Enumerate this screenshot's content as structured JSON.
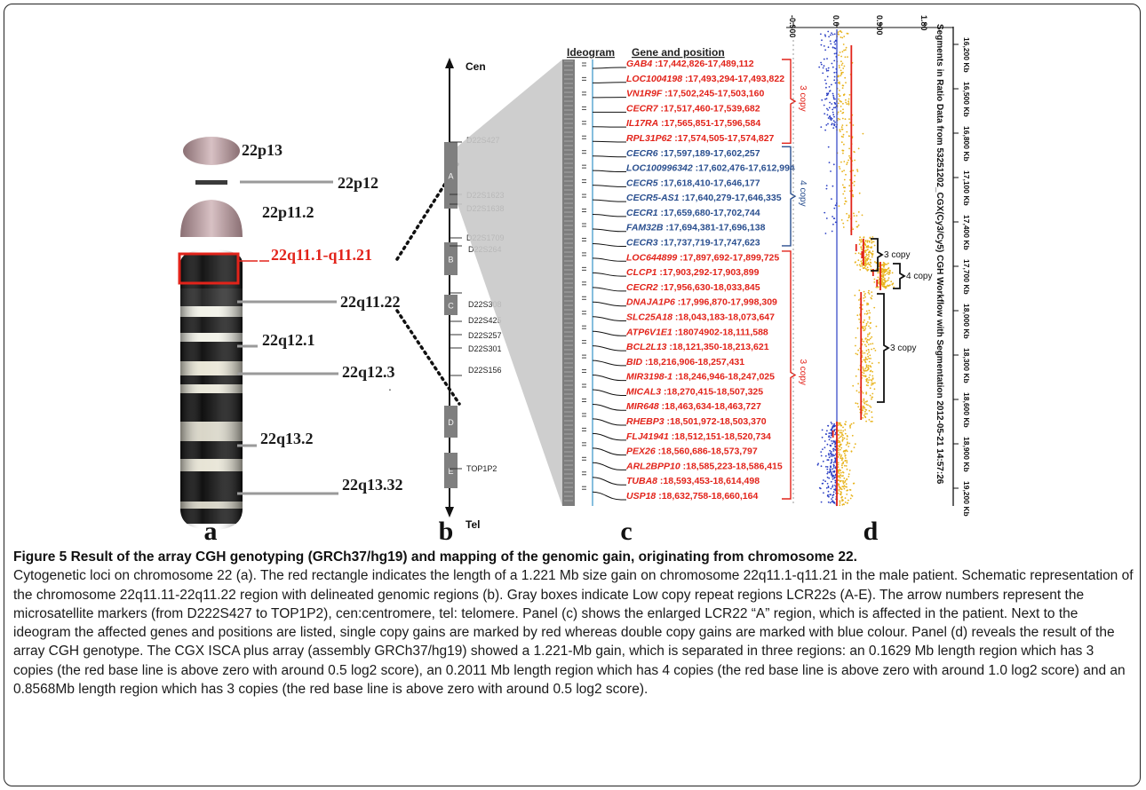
{
  "panel_letters": [
    "a",
    "b",
    "c",
    "d"
  ],
  "panel_a": {
    "bands": [
      "22p13",
      "22p12",
      "22p11.2",
      "22q11.1-q11.21",
      "22q11.22",
      "22q12.1",
      "22q12.3",
      "22q13.2",
      "22q13.32"
    ]
  },
  "panel_b": {
    "cen": "Cen",
    "tel": "Tel",
    "markers": [
      "D22S427",
      "D22S1638",
      "D22S1623",
      "D22S264",
      "D22S1709",
      "D22S308",
      "D22S425",
      "D22S257",
      "D22S301",
      "D22S156",
      "TOP1P2"
    ],
    "lcr_boxes": [
      "A",
      "B",
      "C",
      "D",
      "E"
    ]
  },
  "panel_c": {
    "ideogram_header": "Ideogram",
    "genes_header": "Gene and position",
    "genes": [
      {
        "name": "GAB4",
        "pos": ":17,442,826-17,489,112",
        "color": "#e2231a"
      },
      {
        "name": "LOC1004198",
        "pos": ":17,493,294-17,493,822",
        "color": "#e2231a"
      },
      {
        "name": "VN1R9F",
        "pos": ":17,502,245-17,503,160",
        "color": "#e2231a"
      },
      {
        "name": "CECR7",
        "pos": ":17,517,460-17,539,682",
        "color": "#e2231a"
      },
      {
        "name": "IL17RA",
        "pos": ":17,565,851-17,596,584",
        "color": "#e2231a"
      },
      {
        "name": "RPL31P62",
        "pos": ":17,574,505-17,574,827",
        "color": "#e2231a"
      },
      {
        "name": "CECR6",
        "pos": ":17,597,189-17,602,257",
        "color": "#2a4f8f"
      },
      {
        "name": "LOC100996342",
        "pos": ":17,602,476-17,612,994",
        "color": "#2a4f8f"
      },
      {
        "name": "CECR5",
        "pos": ":17,618,410-17,646,177",
        "color": "#2a4f8f"
      },
      {
        "name": "CECR5-AS1",
        "pos": ":17,640,279-17,646,335",
        "color": "#2a4f8f"
      },
      {
        "name": "CECR1",
        "pos": ":17,659,680-17,702,744",
        "color": "#2a4f8f"
      },
      {
        "name": "FAM32B",
        "pos": ":17,694,381-17,696,138",
        "color": "#2a4f8f"
      },
      {
        "name": "CECR3",
        "pos": ":17,737,719-17,747,623",
        "color": "#2a4f8f"
      },
      {
        "name": "LOC644899",
        "pos": ":17,897,692-17,899,725",
        "color": "#e2231a"
      },
      {
        "name": "CLCP1",
        "pos": ":17,903,292-17,903,899",
        "color": "#e2231a"
      },
      {
        "name": "CECR2",
        "pos": ":17,956,630-18,033,845",
        "color": "#e2231a"
      },
      {
        "name": "DNAJA1P6",
        "pos": ":17,996,870-17,998,309",
        "color": "#e2231a"
      },
      {
        "name": "SLC25A18",
        "pos": ":18,043,183-18,073,647",
        "color": "#e2231a"
      },
      {
        "name": "ATP6V1E1",
        "pos": ":18074902-18,111,588",
        "color": "#e2231a"
      },
      {
        "name": "BCL2L13",
        "pos": ":18,121,350-18,213,621",
        "color": "#e2231a"
      },
      {
        "name": "BID",
        "pos": ":18,216,906-18,257,431",
        "color": "#e2231a"
      },
      {
        "name": "MIR3198-1",
        "pos": ":18,246,946-18,247,025",
        "color": "#e2231a"
      },
      {
        "name": "MICAL3",
        "pos": ":18,270,415-18,507,325",
        "color": "#e2231a"
      },
      {
        "name": "MIR648",
        "pos": ":18,463,634-18,463,727",
        "color": "#e2231a"
      },
      {
        "name": "RHEBP3",
        "pos": ":18,501,972-18,503,370",
        "color": "#e2231a"
      },
      {
        "name": "FLJ41941",
        "pos": ":18,512,151-18,520,734",
        "color": "#e2231a"
      },
      {
        "name": "PEX26",
        "pos": ":18,560,686-18,573,797",
        "color": "#e2231a"
      },
      {
        "name": "ARL2BPP10",
        "pos": ":18,585,223-18,586,415",
        "color": "#e2231a"
      },
      {
        "name": "TUBA8",
        "pos": ":18,593,453-18,614,498",
        "color": "#e2231a"
      },
      {
        "name": "USP18",
        "pos": ":18,632,758-18,660,164",
        "color": "#e2231a"
      }
    ],
    "bracket_labels": [
      "3 copy",
      "4 copy",
      "3 copy"
    ]
  },
  "panel_d": {
    "scale_ticks": [
      "-0.900",
      "0.0",
      "0.900",
      "1.80"
    ],
    "side_title": "Segments in Ratio Data from 53251202_CGX(Cy3/Cy5) CGH Workflow with Segmentation 2012-05-21 14:57:26",
    "position_ticks": [
      "16,200 Kb",
      "16,500 Kb",
      "16,800 Kb",
      "17,100 Kb",
      "17,400 Kb",
      "17,700 Kb",
      "18,000 Kb",
      "18,300 Kb",
      "18,600 Kb",
      "18,900 Kb",
      "19,200 Kb"
    ],
    "copy_labels": [
      "3 copy",
      "4 copy",
      "3 copy"
    ],
    "colors": {
      "gain": "#e8b31c",
      "loss": "#2b3fc4",
      "segment": "#e2231a"
    }
  },
  "caption": {
    "title": "Figure 5 Result of the array CGH genotyping (GRCh37/hg19) and mapping of the genomic gain, originating from chromosome 22.",
    "body": "Cytogenetic loci on chromosome 22 (a). The red rectangle indicates the length of a 1.221 Mb size gain on chromosome 22q11.1-q11.21 in the male patient. Schematic representation of the chromosome 22q11.11-22q11.22 region with delineated genomic regions (b). Gray boxes indicate Low copy repeat regions LCR22s (A-E). The arrow numbers represent the microsatellite markers (from D222S427 to TOP1P2), cen:centromere, tel: telomere. Panel (c) shows the enlarged LCR22 “A” region, which is affected in the patient. Next to the ideogram the affected genes and positions are listed, single copy gains are marked by red whereas double copy gains are marked with blue colour. Panel (d) reveals the result of the array CGH genotype. The CGX ISCA plus array (assembly GRCh37/hg19) showed a 1.221-Mb gain, which is separated in three regions: an 0.1629 Mb length region which has 3 copies (the red base line is above zero with around 0.5 log2 score), an 0.2011 Mb length region which has 4 copies (the red base line is above zero with around 1.0 log2 score) and an 0.8568Mb length region which has 3 copies (the red base line is above zero with around 0.5 log2 score)."
  }
}
